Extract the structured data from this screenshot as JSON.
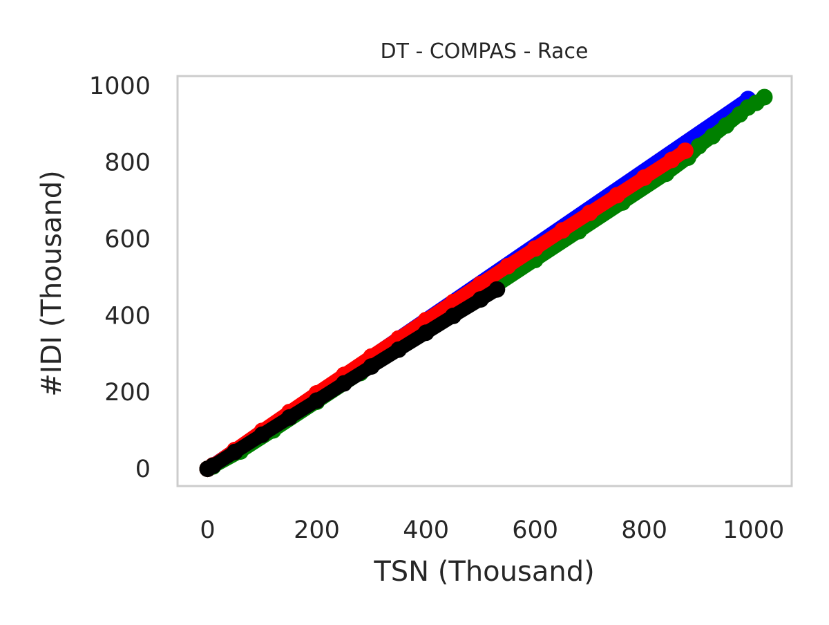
{
  "chart_data": {
    "type": "scatter",
    "title": "DT - COMPAS - Race",
    "xlabel": "TSN (Thousand)",
    "ylabel": "#IDI (Thousand)",
    "xlim": [
      -55,
      1070
    ],
    "ylim": [
      -45,
      1025
    ],
    "xticks": [
      0,
      200,
      400,
      600,
      800,
      1000
    ],
    "yticks": [
      0,
      200,
      400,
      600,
      800,
      1000
    ],
    "xtick_labels": [
      "0",
      "200",
      "400",
      "600",
      "800",
      "1000"
    ],
    "ytick_labels": [
      "0",
      "200",
      "400",
      "600",
      "800",
      "1000"
    ],
    "grid": false,
    "legend": false,
    "series": [
      {
        "color": "#0000ff",
        "x": [
          0,
          990
        ],
        "y": [
          0,
          965
        ]
      },
      {
        "color": "#ffa500",
        "x": [
          0,
          880
        ],
        "y": [
          0,
          815
        ]
      },
      {
        "color": "#008000",
        "x": [
          0,
          10,
          60,
          120,
          200,
          280,
          360,
          440,
          520,
          600,
          680,
          760,
          840,
          880,
          900,
          925,
          950,
          975,
          990,
          1005,
          1020
        ],
        "y": [
          0,
          6,
          45,
          100,
          175,
          250,
          325,
          400,
          470,
          545,
          620,
          695,
          770,
          812,
          842,
          868,
          896,
          925,
          943,
          955,
          970
        ]
      },
      {
        "color": "#ff0000",
        "x": [
          0,
          10,
          50,
          100,
          150,
          200,
          250,
          300,
          350,
          400,
          450,
          500,
          550,
          600,
          650,
          700,
          750,
          800,
          850,
          875
        ],
        "y": [
          0,
          9,
          49,
          99,
          148,
          197,
          245,
          293,
          340,
          388,
          435,
          482,
          529,
          575,
          622,
          668,
          714,
          760,
          806,
          830
        ]
      },
      {
        "color": "#000000",
        "x": [
          0,
          10,
          50,
          100,
          150,
          200,
          250,
          300,
          350,
          400,
          450,
          500,
          530
        ],
        "y": [
          0,
          8,
          44,
          89,
          134,
          178,
          223,
          267,
          311,
          355,
          399,
          442,
          468
        ]
      }
    ]
  }
}
